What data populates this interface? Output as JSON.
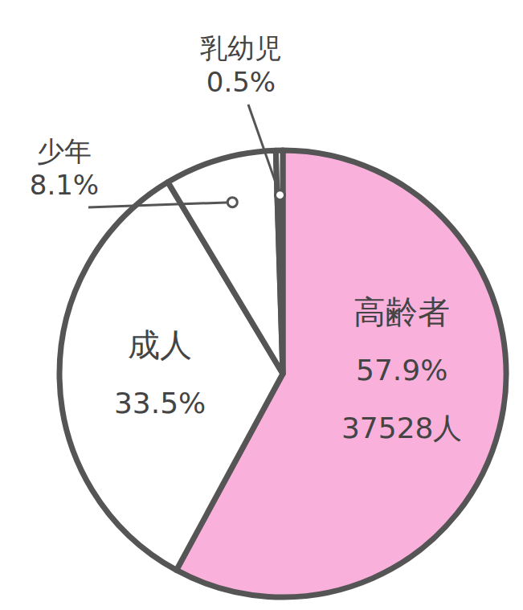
{
  "chart_data": {
    "type": "pie",
    "categories": [
      "高齢者",
      "成人",
      "少年",
      "乳幼児"
    ],
    "values": [
      57.9,
      33.5,
      8.1,
      0.5
    ],
    "value_labels": [
      "57.9%",
      "33.5%",
      "8.1%",
      "0.5%"
    ],
    "colors": [
      "#f9b1dc",
      "#ffffff",
      "#ffffff",
      "#ffffff"
    ],
    "data_labels": true,
    "annotations": [
      {
        "category": "高齢者",
        "text": "37528人"
      }
    ]
  }
}
